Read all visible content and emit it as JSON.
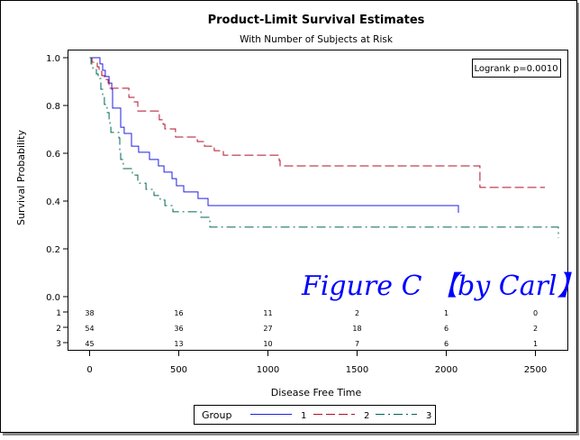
{
  "chart_data": {
    "type": "line",
    "title": "Product-Limit Survival Estimates",
    "subtitle": "With Number of Subjects at Risk",
    "xlabel": "Disease Free Time",
    "ylabel": "Survival Probability",
    "xlim": [
      -120,
      2700
    ],
    "ylim": [
      0,
      1.0
    ],
    "xticks": [
      "0",
      "500",
      "1000",
      "1500",
      "2000",
      "2500"
    ],
    "yticks": [
      "0.0",
      "0.2",
      "0.4",
      "0.6",
      "0.8",
      "1.0"
    ],
    "grid": false,
    "step": true,
    "annotation": "Logrank p=0.0010",
    "watermark": "Figure C 【by Carl】",
    "legend": {
      "title": "Group",
      "position": "bottom"
    },
    "series": [
      {
        "name": "1",
        "color": "#1f1fe6",
        "dash": "solid",
        "x": [
          0,
          58,
          73,
          88,
          109,
          124,
          129,
          174,
          194,
          235,
          275,
          336,
          386,
          417,
          462,
          487,
          528,
          608,
          664,
          2068
        ],
        "y": [
          1.0,
          0.974,
          0.947,
          0.921,
          0.894,
          0.868,
          0.789,
          0.709,
          0.683,
          0.63,
          0.604,
          0.574,
          0.547,
          0.521,
          0.494,
          0.464,
          0.438,
          0.411,
          0.381,
          0.351
        ]
      },
      {
        "name": "2",
        "color": "#b0102a",
        "dash": "long-dash",
        "x": [
          0,
          8,
          13,
          43,
          53,
          68,
          83,
          104,
          109,
          220,
          250,
          270,
          391,
          412,
          422,
          482,
          604,
          644,
          699,
          750,
          1063,
          1068,
          2189,
          2553
        ],
        "y": [
          1.0,
          1.0,
          0.981,
          0.962,
          0.943,
          0.925,
          0.909,
          0.894,
          0.872,
          0.834,
          0.815,
          0.777,
          0.74,
          0.721,
          0.702,
          0.668,
          0.649,
          0.63,
          0.611,
          0.592,
          0.57,
          0.547,
          0.457,
          0.457
        ]
      },
      {
        "name": "3",
        "color": "#006655",
        "dash": "dash-dot",
        "x": [
          0,
          8,
          18,
          38,
          48,
          63,
          73,
          83,
          98,
          109,
          114,
          119,
          164,
          169,
          174,
          189,
          240,
          270,
          275,
          316,
          361,
          396,
          422,
          467,
          624,
          674,
          2629
        ],
        "y": [
          1.0,
          0.974,
          0.955,
          0.932,
          0.913,
          0.868,
          0.838,
          0.804,
          0.77,
          0.732,
          0.709,
          0.687,
          0.664,
          0.6,
          0.574,
          0.536,
          0.509,
          0.487,
          0.475,
          0.449,
          0.423,
          0.404,
          0.381,
          0.355,
          0.332,
          0.291,
          0.245
        ]
      }
    ],
    "at_risk": {
      "times": [
        0,
        500,
        1000,
        1500,
        2000,
        2500
      ],
      "rows": [
        {
          "group": "1",
          "values": [
            "38",
            "16",
            "11",
            "2",
            "1",
            "0"
          ]
        },
        {
          "group": "2",
          "values": [
            "54",
            "36",
            "27",
            "18",
            "6",
            "2"
          ]
        },
        {
          "group": "3",
          "values": [
            "45",
            "13",
            "10",
            "7",
            "6",
            "1"
          ]
        }
      ]
    }
  }
}
